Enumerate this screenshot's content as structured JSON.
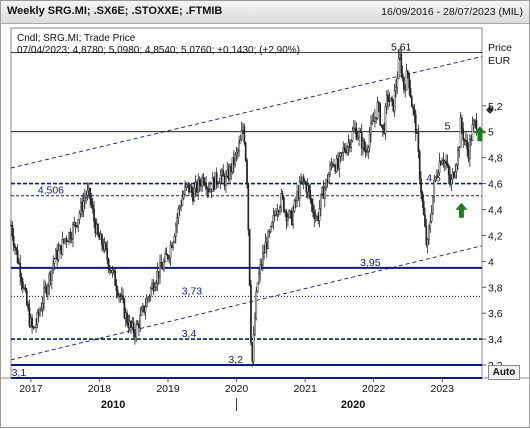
{
  "window": {
    "title": "Weekly SRG.MI; .SX6E; .STOXXE; .FTMIB",
    "date_range": "16/09/2016 - 28/07/2023 (MIL)",
    "auto_button": "Auto"
  },
  "legend": {
    "line1": "Cndl; SRG.MI; Trade Price",
    "line2": "07/04/2023; 4,8780; 5,0980; 4,8540; 5,0760; +0,1430; (+2,90%)"
  },
  "chart_data": {
    "type": "candlestick",
    "instrument": "SRG.MI",
    "price_field": "Trade Price",
    "interval": "Weekly",
    "y_axis_title": [
      "Price",
      "EUR"
    ],
    "ylim": [
      3.1,
      5.8
    ],
    "y_ticks": [
      "3,2",
      "3,4",
      "3,6",
      "3,8",
      "4",
      "4,2",
      "4,4",
      "4,6",
      "4,8",
      "5",
      "5,2"
    ],
    "y_tick_values": [
      3.2,
      3.4,
      3.6,
      3.8,
      4.0,
      4.2,
      4.4,
      4.6,
      4.8,
      5.0,
      5.2
    ],
    "xlim": [
      2016.71,
      2023.58
    ],
    "x_year_labels": [
      "2017",
      "2018",
      "2019",
      "2020",
      "2021",
      "2022",
      "2023"
    ],
    "x_year_values": [
      2017,
      2018,
      2019,
      2020,
      2021,
      2022,
      2023
    ],
    "x_decade_labels": [
      "2010",
      "2020"
    ],
    "x_decade_values": [
      2018.2,
      2021.7
    ],
    "last_bar": {
      "date": "07/04/2023",
      "open": 4.878,
      "high": 5.098,
      "low": 4.854,
      "close": 5.076,
      "change": 0.143,
      "change_pct": "+2,90%"
    },
    "price_path": [
      [
        2016.71,
        4.28
      ],
      [
        2016.78,
        4.08
      ],
      [
        2016.86,
        3.9
      ],
      [
        2016.92,
        3.72
      ],
      [
        2016.98,
        3.55
      ],
      [
        2017.03,
        3.46
      ],
      [
        2017.1,
        3.56
      ],
      [
        2017.18,
        3.72
      ],
      [
        2017.26,
        3.86
      ],
      [
        2017.34,
        4.02
      ],
      [
        2017.42,
        4.08
      ],
      [
        2017.5,
        4.18
      ],
      [
        2017.58,
        4.22
      ],
      [
        2017.66,
        4.3
      ],
      [
        2017.74,
        4.42
      ],
      [
        2017.8,
        4.52
      ],
      [
        2017.86,
        4.5
      ],
      [
        2017.92,
        4.32
      ],
      [
        2017.98,
        4.18
      ],
      [
        2018.06,
        4.12
      ],
      [
        2018.14,
        3.98
      ],
      [
        2018.22,
        3.86
      ],
      [
        2018.3,
        3.74
      ],
      [
        2018.38,
        3.58
      ],
      [
        2018.46,
        3.48
      ],
      [
        2018.52,
        3.46
      ],
      [
        2018.6,
        3.56
      ],
      [
        2018.68,
        3.68
      ],
      [
        2018.76,
        3.8
      ],
      [
        2018.84,
        3.9
      ],
      [
        2018.92,
        3.96
      ],
      [
        2019.0,
        4.05
      ],
      [
        2019.08,
        4.2
      ],
      [
        2019.14,
        4.36
      ],
      [
        2019.2,
        4.48
      ],
      [
        2019.28,
        4.58
      ],
      [
        2019.36,
        4.52
      ],
      [
        2019.44,
        4.58
      ],
      [
        2019.52,
        4.66
      ],
      [
        2019.6,
        4.56
      ],
      [
        2019.68,
        4.62
      ],
      [
        2019.76,
        4.66
      ],
      [
        2019.84,
        4.62
      ],
      [
        2019.92,
        4.72
      ],
      [
        2020.0,
        4.82
      ],
      [
        2020.06,
        4.92
      ],
      [
        2020.1,
        5.06
      ],
      [
        2020.15,
        4.68
      ],
      [
        2020.18,
        4.1
      ],
      [
        2020.21,
        3.42
      ],
      [
        2020.23,
        3.22
      ],
      [
        2020.26,
        3.5
      ],
      [
        2020.3,
        3.82
      ],
      [
        2020.36,
        3.98
      ],
      [
        2020.42,
        4.12
      ],
      [
        2020.5,
        4.22
      ],
      [
        2020.58,
        4.42
      ],
      [
        2020.66,
        4.48
      ],
      [
        2020.72,
        4.38
      ],
      [
        2020.8,
        4.32
      ],
      [
        2020.88,
        4.5
      ],
      [
        2020.96,
        4.62
      ],
      [
        2021.04,
        4.56
      ],
      [
        2021.1,
        4.42
      ],
      [
        2021.18,
        4.32
      ],
      [
        2021.24,
        4.5
      ],
      [
        2021.32,
        4.62
      ],
      [
        2021.4,
        4.78
      ],
      [
        2021.48,
        4.72
      ],
      [
        2021.56,
        4.86
      ],
      [
        2021.64,
        4.92
      ],
      [
        2021.72,
        5.02
      ],
      [
        2021.8,
        4.96
      ],
      [
        2021.88,
        4.84
      ],
      [
        2021.94,
        4.98
      ],
      [
        2022.0,
        5.08
      ],
      [
        2022.06,
        5.2
      ],
      [
        2022.14,
        4.98
      ],
      [
        2022.2,
        5.28
      ],
      [
        2022.28,
        5.18
      ],
      [
        2022.34,
        5.42
      ],
      [
        2022.38,
        5.58
      ],
      [
        2022.44,
        5.34
      ],
      [
        2022.5,
        5.46
      ],
      [
        2022.56,
        5.2
      ],
      [
        2022.62,
        5.02
      ],
      [
        2022.68,
        4.62
      ],
      [
        2022.74,
        4.28
      ],
      [
        2022.78,
        4.08
      ],
      [
        2022.82,
        4.3
      ],
      [
        2022.88,
        4.58
      ],
      [
        2022.94,
        4.74
      ],
      [
        2023.0,
        4.82
      ],
      [
        2023.06,
        4.74
      ],
      [
        2023.12,
        4.58
      ],
      [
        2023.18,
        4.72
      ],
      [
        2023.24,
        4.86
      ],
      [
        2023.27,
        5.07
      ],
      [
        2023.32,
        4.94
      ],
      [
        2023.38,
        4.84
      ],
      [
        2023.44,
        5.02
      ],
      [
        2023.5,
        5.08
      ]
    ],
    "trend_channel": {
      "upper": [
        [
          2016.71,
          4.72
        ],
        [
          2023.58,
          5.58
        ]
      ],
      "lower": [
        [
          2016.71,
          3.24
        ],
        [
          2023.58,
          4.12
        ]
      ]
    },
    "horizontal_levels": [
      {
        "label": "5,61",
        "value": 5.61,
        "style": "solid-thin",
        "color": "#000000"
      },
      {
        "label": "5",
        "value": 5.0,
        "style": "solid-thin",
        "color": "#000000"
      },
      {
        "label": "4,6",
        "value": 4.6,
        "style": "dashed-bold",
        "color": "#0c1e7a"
      },
      {
        "label": "4,506",
        "value": 4.506,
        "style": "dashed",
        "color": "#0c1e7a"
      },
      {
        "label": "3,95",
        "value": 3.95,
        "style": "solid-bold",
        "color": "#0c1e7a"
      },
      {
        "label": "3,73",
        "value": 3.73,
        "style": "dotted",
        "color": "#0c1e7a"
      },
      {
        "label": "3,4",
        "value": 3.4,
        "style": "dashed-bold",
        "color": "#0c1e7a"
      },
      {
        "label": "3,2",
        "value": 3.2,
        "style": "solid-bold",
        "color": "#0c1e7a"
      },
      {
        "label": "3,1",
        "value": 3.1,
        "style": "solid-bold",
        "color": "#0c1e7a"
      }
    ],
    "arrows": [
      {
        "direction": "up",
        "x": 2023.28,
        "y": 4.39,
        "color": "#1b7d1b"
      },
      {
        "direction": "up",
        "x": 2023.55,
        "y": 4.98,
        "color": "#1b7d1b"
      }
    ],
    "grid": "off",
    "colors": {
      "candles": "#222222",
      "levels": "#0c1e7a",
      "arrows": "#1b7d1b",
      "channel": "#0c1e7a"
    }
  }
}
